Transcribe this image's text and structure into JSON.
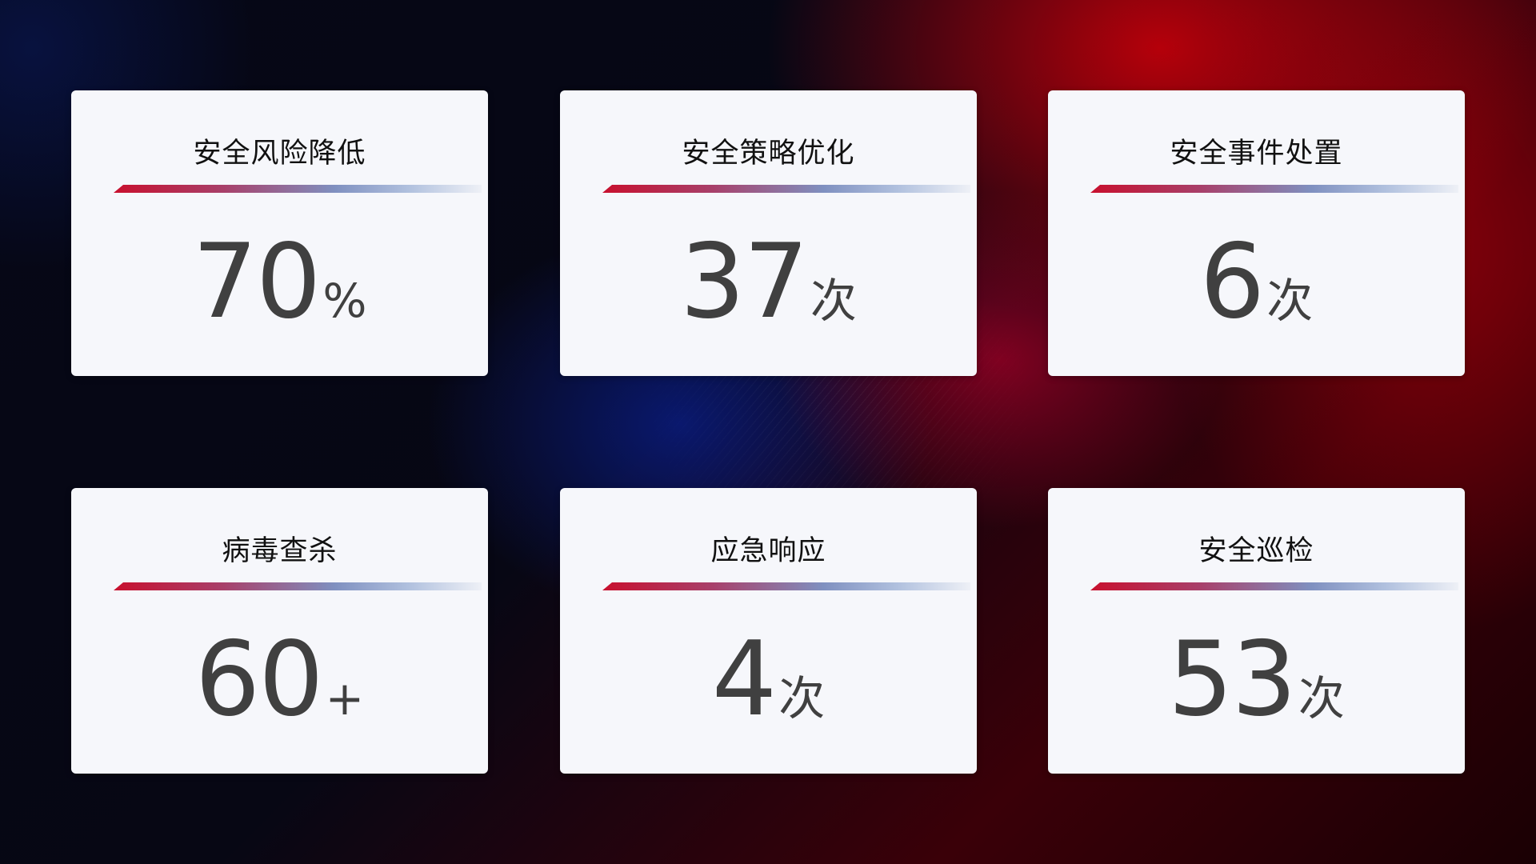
{
  "colors": {
    "accent_red": "#c8102e",
    "accent_blue": "#7f90c0",
    "value_text": "#404040",
    "card_bg": "#f6f7fb"
  },
  "cards": [
    {
      "title": "安全风险降低",
      "value": "70",
      "unit": "%"
    },
    {
      "title": "安全策略优化",
      "value": "37",
      "unit": "次"
    },
    {
      "title": "安全事件处置",
      "value": "6",
      "unit": "次"
    },
    {
      "title": "病毒查杀",
      "value": "60",
      "unit": "+"
    },
    {
      "title": "应急响应",
      "value": "4",
      "unit": "次"
    },
    {
      "title": "安全巡检",
      "value": "53",
      "unit": "次"
    }
  ]
}
